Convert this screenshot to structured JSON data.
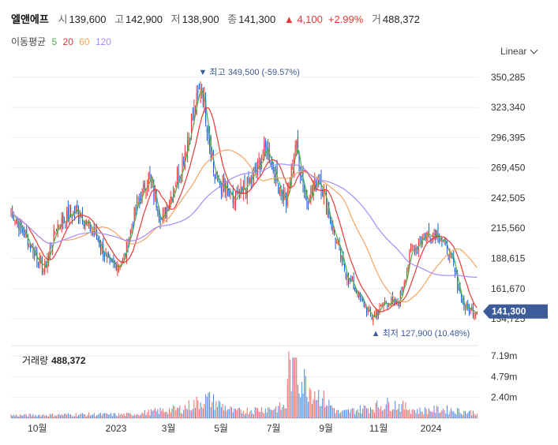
{
  "header": {
    "name": "엘앤에프",
    "open_label": "시",
    "open": "139,600",
    "high_label": "고",
    "high": "142,900",
    "low_label": "저",
    "low": "138,900",
    "close_label": "종",
    "close": "141,300",
    "change": "▲ 4,100",
    "change_pct": "+2.99%",
    "volume_label": "거",
    "volume": "488,372"
  },
  "ma": {
    "label": "이동평균",
    "periods": [
      {
        "text": "5",
        "color": "#4caf50"
      },
      {
        "text": "20",
        "color": "#e53935"
      },
      {
        "text": "60",
        "color": "#f4a460"
      },
      {
        "text": "120",
        "color": "#a78bfa"
      }
    ]
  },
  "scale_toggle": "Linear",
  "colors": {
    "up": "#e53935",
    "down": "#1e62d0",
    "grid": "#eeeeee",
    "price_tag_bg": "#3d5a99"
  },
  "chart_data": {
    "type": "candlestick",
    "price_ylim": [
      120000,
      360000
    ],
    "price_ticks": [
      "350,285",
      "323,340",
      "296,395",
      "269,450",
      "242,505",
      "215,560",
      "188,615",
      "161,670",
      "134,725"
    ],
    "price_tick_values": [
      350285,
      323340,
      296395,
      269450,
      242505,
      215560,
      188615,
      161670,
      134725
    ],
    "x_ticks": [
      "10월",
      "2023",
      "3월",
      "5월",
      "7월",
      "9월",
      "11월",
      "2024"
    ],
    "x_tick_dates": [
      "2022-10",
      "2023-01",
      "2023-03",
      "2023-05",
      "2023-07",
      "2023-09",
      "2023-11",
      "2024-01"
    ],
    "x_range": [
      "2022-09",
      "2024-02"
    ],
    "max_label": "▼ 최고 349,500 (-59.57%)",
    "max_value": 349500,
    "max_date": "2023-04",
    "min_label": "▲ 최저 127,900 (10.48%)",
    "min_value": 127900,
    "min_date": "2023-10",
    "last_price": "141,300",
    "last_value": 141300,
    "volume_label": "거래량",
    "volume_value": "488,372",
    "volume_ticks": [
      "7.19m",
      "4.79m",
      "2.40m"
    ],
    "volume_tick_values": [
      7.19,
      4.79,
      2.4
    ],
    "price_keypoints": [
      [
        "2022-09",
        232000
      ],
      [
        "2022-10",
        178000
      ],
      [
        "2022-10",
        218000
      ],
      [
        "2022-11",
        232000
      ],
      [
        "2022-12",
        208000
      ],
      [
        "2022-12",
        182000
      ],
      [
        "2023-01",
        185000
      ],
      [
        "2023-01",
        232000
      ],
      [
        "2023-02",
        262000
      ],
      [
        "2023-02",
        222000
      ],
      [
        "2023-03",
        272000
      ],
      [
        "2023-04",
        345000
      ],
      [
        "2023-04",
        262000
      ],
      [
        "2023-05",
        238000
      ],
      [
        "2023-06",
        262000
      ],
      [
        "2023-06",
        288000
      ],
      [
        "2023-07",
        255000
      ],
      [
        "2023-07",
        238000
      ],
      [
        "2023-07",
        292000
      ],
      [
        "2023-08",
        240000
      ],
      [
        "2023-08",
        262000
      ],
      [
        "2023-09",
        215000
      ],
      [
        "2023-09",
        175000
      ],
      [
        "2023-10",
        155000
      ],
      [
        "2023-10",
        135000
      ],
      [
        "2023-11",
        150000
      ],
      [
        "2023-11",
        148000
      ],
      [
        "2023-12",
        195000
      ],
      [
        "2023-12",
        210000
      ],
      [
        "2024-01",
        212000
      ],
      [
        "2024-01",
        190000
      ],
      [
        "2024-02",
        145000
      ],
      [
        "2024-02",
        141300
      ]
    ],
    "volume_keypoints": [
      [
        "2022-09",
        0.4
      ],
      [
        "2022-11",
        0.5
      ],
      [
        "2023-01",
        0.5
      ],
      [
        "2023-03",
        1.3
      ],
      [
        "2023-04",
        2.6
      ],
      [
        "2023-05",
        0.9
      ],
      [
        "2023-07",
        1.5
      ],
      [
        "2023-07",
        7.0
      ],
      [
        "2023-09",
        0.7
      ],
      [
        "2023-11",
        2.0
      ],
      [
        "2023-12",
        1.0
      ],
      [
        "2024-01",
        1.2
      ],
      [
        "2024-02",
        0.8
      ]
    ],
    "ma_series": [
      {
        "name": "5",
        "color": "#4caf50",
        "period": 5
      },
      {
        "name": "20",
        "color": "#e53935",
        "period": 20
      },
      {
        "name": "60",
        "color": "#f4a460",
        "period": 60
      },
      {
        "name": "120",
        "color": "#a78bfa",
        "period": 120
      }
    ]
  }
}
